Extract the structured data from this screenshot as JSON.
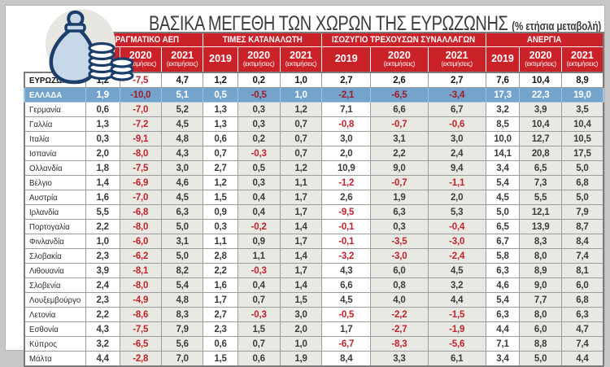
{
  "title": {
    "main": "ΒΑΣΙΚΑ ΜΕΓΕΘΗ ΤΩΝ ΧΩΡΩΝ ΤΗΣ ΕΥΡΩΖΩΝΗΣ",
    "suffix": "(% ετήσια μεταβολή)"
  },
  "icon": {
    "name": "money-bag-icon"
  },
  "colors": {
    "header_red": "#cb2229",
    "greece_row_blue": "#74a3cc",
    "negative_red": "#c2232b",
    "greece_negative_red": "#9e1c26",
    "estimate_column_tint": "#e9e9e4",
    "icon_navy": "#1c3e6a",
    "icon_bag_fill": "#c7d9e9"
  },
  "chart_data": {
    "type": "table",
    "title": "ΒΑΣΙΚΑ ΜΕΓΕΘΗ ΤΩΝ ΧΩΡΩΝ ΤΗΣ ΕΥΡΩΖΩΝΗΣ",
    "unit": "% ετήσια μεταβολή",
    "column_groups": [
      "ΠΡΑΓΜΑΤΙΚΟ ΑΕΠ",
      "ΤΙΜΕΣ ΚΑΤΑΝΑΛΩΤΗ",
      "ΙΣΟΖΥΓΙΟ ΤΡΕΧΟΥΣΩΝ ΣΥΝΑΛΛΑΓΩΝ",
      "ΑΝΕΡΓΙΑ"
    ],
    "years": [
      "2019",
      "2020",
      "2021"
    ],
    "estimate_note": "(εκτιμήσεις)",
    "estimate_years": [
      "2020",
      "2021"
    ],
    "rows": [
      {
        "name": "ΕΥΡΩΖΩΝΗ",
        "highlight": "eurozone",
        "values": [
          "1,2",
          "-7,5",
          "4,7",
          "1,2",
          "0,2",
          "1,0",
          "2,7",
          "2,6",
          "2,7",
          "7,6",
          "10,4",
          "8,9"
        ]
      },
      {
        "name": "ΕΛΛΑΔΑ",
        "highlight": "greece",
        "values": [
          "1,9",
          "-10,0",
          "5,1",
          "0,5",
          "-0,5",
          "1,0",
          "-2,1",
          "-6,5",
          "-3,4",
          "17,3",
          "22,3",
          "19,0"
        ]
      },
      {
        "name": "Γερμανία",
        "highlight": "",
        "values": [
          "0,6",
          "-7,0",
          "5,2",
          "1,3",
          "0,3",
          "1,2",
          "7,1",
          "6,6",
          "6,7",
          "3,2",
          "3,9",
          "3,5"
        ]
      },
      {
        "name": "Γαλλία",
        "highlight": "",
        "values": [
          "1,3",
          "-7,2",
          "4,5",
          "1,3",
          "0,3",
          "0,7",
          "-0,8",
          "-0,7",
          "-0,6",
          "8,5",
          "10,4",
          "10,4"
        ]
      },
      {
        "name": "Ιταλία",
        "highlight": "",
        "values": [
          "0,3",
          "-9,1",
          "4,8",
          "0,6",
          "0,2",
          "0,7",
          "3,0",
          "3,1",
          "3,0",
          "10,0",
          "12,7",
          "10,5"
        ]
      },
      {
        "name": "Ισπανία",
        "highlight": "",
        "values": [
          "2,0",
          "-8,0",
          "4,3",
          "0,7",
          "-0,3",
          "0,7",
          "2,0",
          "2,2",
          "2,4",
          "14,1",
          "20,8",
          "17,5"
        ]
      },
      {
        "name": "Ολλανδία",
        "highlight": "",
        "values": [
          "1,8",
          "-7,5",
          "3,0",
          "2,7",
          "0,5",
          "1,2",
          "10,9",
          "9,0",
          "9,4",
          "3,4",
          "6,5",
          "5,0"
        ]
      },
      {
        "name": "Βέλγιο",
        "highlight": "",
        "values": [
          "1,4",
          "-6,9",
          "4,6",
          "1,2",
          "0,3",
          "1,1",
          "-1,2",
          "-0,7",
          "-1,1",
          "5,4",
          "7,3",
          "6,8"
        ]
      },
      {
        "name": "Αυστρία",
        "highlight": "",
        "values": [
          "1,6",
          "-7,0",
          "4,5",
          "1,5",
          "0,4",
          "1,7",
          "2,6",
          "1,9",
          "2,0",
          "4,5",
          "5,5",
          "5,0"
        ]
      },
      {
        "name": "Ιρλανδία",
        "highlight": "",
        "values": [
          "5,5",
          "-6,8",
          "6,3",
          "0,9",
          "0,4",
          "1,7",
          "-9,5",
          "6,3",
          "5,3",
          "5,0",
          "12,1",
          "7,9"
        ]
      },
      {
        "name": "Πορτογαλία",
        "highlight": "",
        "values": [
          "2,2",
          "-8,0",
          "5,0",
          "0,3",
          "-0,2",
          "1,4",
          "-0,1",
          "0,3",
          "-0,4",
          "6,5",
          "13,9",
          "8,7"
        ]
      },
      {
        "name": "Φινλανδία",
        "highlight": "",
        "values": [
          "1,0",
          "-6,0",
          "3,1",
          "1,1",
          "0,9",
          "1,7",
          "-0,1",
          "-3,5",
          "-3,0",
          "6,7",
          "8,3",
          "8,4"
        ]
      },
      {
        "name": "Σλοβακία",
        "highlight": "",
        "values": [
          "2,3",
          "-6,2",
          "5,0",
          "2,8",
          "1,1",
          "1,4",
          "-3,2",
          "-3,0",
          "-2,4",
          "5,8",
          "8,0",
          "7,4"
        ]
      },
      {
        "name": "Λιθουανία",
        "highlight": "",
        "values": [
          "3,9",
          "-8,1",
          "8,2",
          "2,2",
          "-0,3",
          "1,7",
          "4,3",
          "6,0",
          "4,5",
          "6,3",
          "8,9",
          "8,1"
        ]
      },
      {
        "name": "Σλοβενία",
        "highlight": "",
        "values": [
          "2,4",
          "-8,0",
          "5,4",
          "1,6",
          "0,4",
          "1,4",
          "6,6",
          "0,8",
          "3,2",
          "4,6",
          "9,0",
          "6,0"
        ]
      },
      {
        "name": "Λουξεμβούργο",
        "highlight": "",
        "values": [
          "2,3",
          "-4,9",
          "4,8",
          "1,7",
          "0,7",
          "1,5",
          "4,5",
          "4,0",
          "4,4",
          "5,4",
          "7,7",
          "6,8"
        ]
      },
      {
        "name": "Λετονία",
        "highlight": "",
        "values": [
          "2,2",
          "-8,6",
          "8,3",
          "2,7",
          "-0,3",
          "3,0",
          "-0,5",
          "-2,2",
          "-1,5",
          "6,3",
          "8,0",
          "6,3"
        ]
      },
      {
        "name": "Εσθονία",
        "highlight": "",
        "values": [
          "4,3",
          "-7,5",
          "7,9",
          "2,3",
          "1,5",
          "2,0",
          "1,7",
          "-2,7",
          "-1,9",
          "4,4",
          "6,0",
          "4,7"
        ]
      },
      {
        "name": "Κύπρος",
        "highlight": "",
        "values": [
          "3,2",
          "-6,5",
          "5,6",
          "0,6",
          "0,7",
          "1,0",
          "-6,7",
          "-8,3",
          "-5,6",
          "7,1",
          "8,8",
          "7,4"
        ]
      },
      {
        "name": "Μάλτα",
        "highlight": "",
        "values": [
          "4,4",
          "-2,8",
          "7,0",
          "1,5",
          "0,6",
          "1,9",
          "8,4",
          "3,3",
          "6,1",
          "3,4",
          "5,0",
          "4,4"
        ]
      }
    ]
  }
}
